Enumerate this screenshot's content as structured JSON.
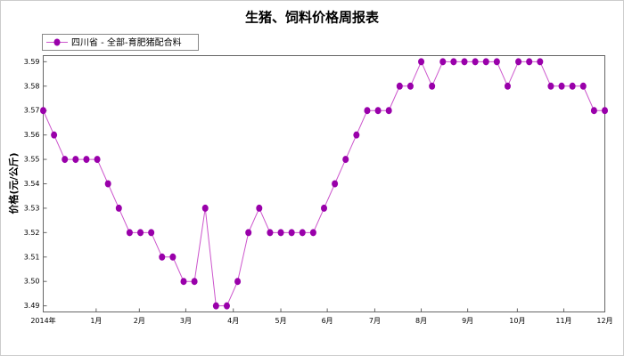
{
  "chart_data": {
    "type": "line",
    "title": "生猪、饲料价格周报表",
    "y_label": "价格(元/公斤)",
    "x": [
      0,
      1,
      2,
      3,
      4,
      5,
      6,
      7,
      8,
      9,
      10,
      11,
      12,
      13,
      14,
      15,
      16,
      17,
      18,
      19,
      20,
      21,
      22,
      23,
      24,
      25,
      26,
      27,
      28,
      29,
      30,
      31,
      32,
      33,
      34,
      35,
      36,
      37,
      38,
      39,
      40,
      41,
      42,
      43,
      44,
      45,
      46,
      47,
      48,
      49,
      50,
      51,
      52
    ],
    "series": [
      {
        "name": "四川省 - 全部-育肥猪配合料",
        "color": "#cc55cc",
        "marker_color": "#9900aa",
        "values": [
          3.57,
          3.56,
          3.55,
          3.55,
          3.55,
          3.55,
          3.54,
          3.53,
          3.52,
          3.52,
          3.52,
          3.51,
          3.51,
          3.5,
          3.5,
          3.53,
          3.49,
          3.49,
          3.5,
          3.52,
          3.53,
          3.52,
          3.52,
          3.52,
          3.52,
          3.52,
          3.53,
          3.54,
          3.55,
          3.56,
          3.57,
          3.57,
          3.57,
          3.58,
          3.58,
          3.59,
          3.58,
          3.59,
          3.59,
          3.59,
          3.59,
          3.59,
          3.59,
          3.58,
          3.59,
          3.59,
          3.59,
          3.58,
          3.58,
          3.58,
          3.58,
          3.57,
          3.57
        ]
      }
    ],
    "xlim": [
      0,
      52
    ],
    "xticks": [
      {
        "value": 0,
        "label": "2014年"
      },
      {
        "value": 4.9,
        "label": "1月"
      },
      {
        "value": 8.9,
        "label": "2月"
      },
      {
        "value": 13.2,
        "label": "3月"
      },
      {
        "value": 17.6,
        "label": "4月"
      },
      {
        "value": 22,
        "label": "5月"
      },
      {
        "value": 26.3,
        "label": "6月"
      },
      {
        "value": 30.7,
        "label": "7月"
      },
      {
        "value": 35,
        "label": "8月"
      },
      {
        "value": 39.3,
        "label": "9月"
      },
      {
        "value": 43.9,
        "label": "10月"
      },
      {
        "value": 48.2,
        "label": "11月"
      },
      {
        "value": 52,
        "label": "12月"
      }
    ],
    "ylim": [
      3.4875,
      3.5925
    ],
    "yticks": [
      3.49,
      {
        "value": 3.5,
        "label": "3.50"
      },
      3.51,
      3.52,
      3.53,
      3.54,
      3.55,
      3.56,
      3.57,
      3.58,
      3.59
    ],
    "grid": false
  }
}
